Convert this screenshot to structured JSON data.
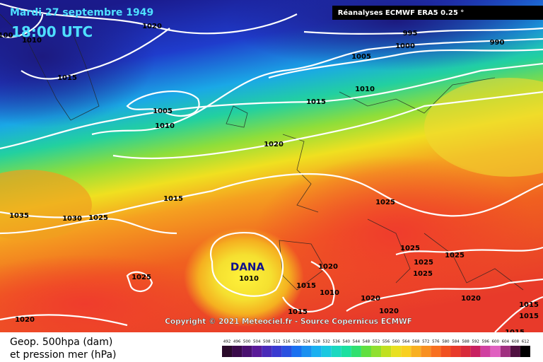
{
  "header": {
    "date": "Mardi 27 septembre 1949",
    "time": "18:00 UTC",
    "source": "Réanalyses ECMWF ERA5 0.25 °"
  },
  "isobar_labels": [
    "1020",
    "1010",
    "100",
    "1015",
    "1005",
    "1010",
    "1005",
    "995",
    "1000",
    "990",
    "1010",
    "1015",
    "1020",
    "1015",
    "1035",
    "1030",
    "1025",
    "1025",
    "1025",
    "1020",
    "1010",
    "1015",
    "1010",
    "1015",
    "1020",
    "1020",
    "1025",
    "1025",
    "1025",
    "1025",
    "1020",
    "1015",
    "1015",
    "1020",
    "1015"
  ],
  "annotation": "DANA",
  "copyright": "Copyright © 2021 Meteociel.fr - Source Copernicus ECMWF",
  "legend": {
    "line1": "Geop. 500hpa (dam)",
    "line2": "et pression mer (hPa)",
    "scale": [
      492,
      496,
      500,
      504,
      508,
      512,
      516,
      520,
      524,
      528,
      532,
      536,
      540,
      544,
      548,
      552,
      556,
      560,
      564,
      568,
      572,
      576,
      580,
      584,
      588,
      592,
      596,
      600,
      604,
      608,
      612
    ]
  }
}
